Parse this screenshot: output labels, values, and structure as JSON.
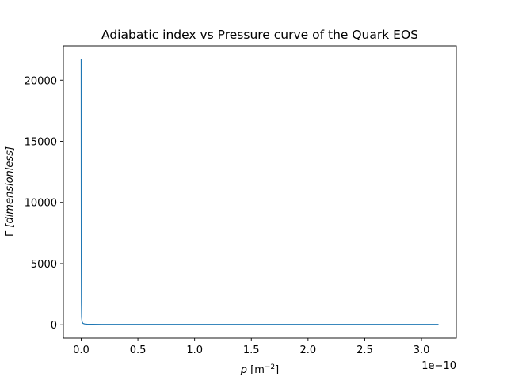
{
  "chart_data": {
    "type": "line",
    "title": "Adiabatic index vs Pressure curve of the Quark EOS",
    "xlabel": {
      "main": "p",
      "unit_open": "[m",
      "unit_exp": "−2",
      "unit_close": "]"
    },
    "ylabel": {
      "symbol": "Γ",
      "unit": "[dimensionless]"
    },
    "x_offset_text": "1e−10",
    "x_scale": 1e-10,
    "xlim": [
      -0.157,
      3.307
    ],
    "ylim": [
      -1085,
      22800
    ],
    "xticks": [
      0.0,
      0.5,
      1.0,
      1.5,
      2.0,
      2.5,
      3.0
    ],
    "xtick_labels": [
      "0.0",
      "0.5",
      "1.0",
      "1.5",
      "2.0",
      "2.5",
      "3.0"
    ],
    "yticks": [
      0,
      5000,
      10000,
      15000,
      20000
    ],
    "ytick_labels": [
      "0",
      "5000",
      "10000",
      "15000",
      "20000"
    ],
    "grid": false,
    "series": [
      {
        "color": "#1f77b4",
        "x": [
          0.0,
          0.0005,
          0.001,
          0.002,
          0.004,
          0.008,
          0.015,
          0.03,
          0.05,
          0.1,
          0.2,
          0.5,
          1.0,
          1.5,
          2.0,
          2.5,
          3.0,
          3.15
        ],
        "y": [
          21750,
          12000,
          5000,
          1800,
          600,
          250,
          120,
          70,
          50,
          40,
          35,
          33,
          33,
          33,
          33,
          33,
          33,
          33
        ]
      }
    ]
  }
}
